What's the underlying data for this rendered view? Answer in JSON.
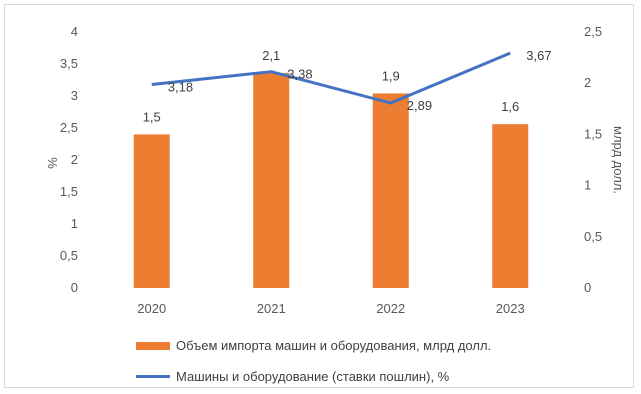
{
  "chart_data": {
    "type": "bar",
    "categories": [
      "2020",
      "2021",
      "2022",
      "2023"
    ],
    "series": [
      {
        "name": "Объем импорта машин и оборудования, млрд долл.",
        "type": "bar",
        "axis": "right",
        "values": [
          1.5,
          2.1,
          1.9,
          1.6
        ],
        "labels": [
          "1,5",
          "2,1",
          "1,9",
          "1,6"
        ],
        "color": "#ed7d31"
      },
      {
        "name": "Машины и оборудование (ставки пошлин), %",
        "type": "line",
        "axis": "left",
        "values": [
          3.18,
          3.38,
          2.89,
          3.67
        ],
        "labels": [
          "3,18",
          "3,38",
          "2,89",
          "3,67"
        ],
        "color": "#4472c4"
      }
    ],
    "y_left": {
      "label": "%",
      "ylim": [
        0,
        4
      ],
      "ticks": [
        "0",
        "0,5",
        "1",
        "1,5",
        "2",
        "2,5",
        "3",
        "3,5",
        "4"
      ]
    },
    "y_right": {
      "label": "млрд долл.",
      "ylim": [
        0,
        2.5
      ],
      "ticks": [
        "0",
        "0,5",
        "1",
        "1,5",
        "2",
        "2,5"
      ]
    },
    "grid": false,
    "legend_position": "bottom"
  }
}
